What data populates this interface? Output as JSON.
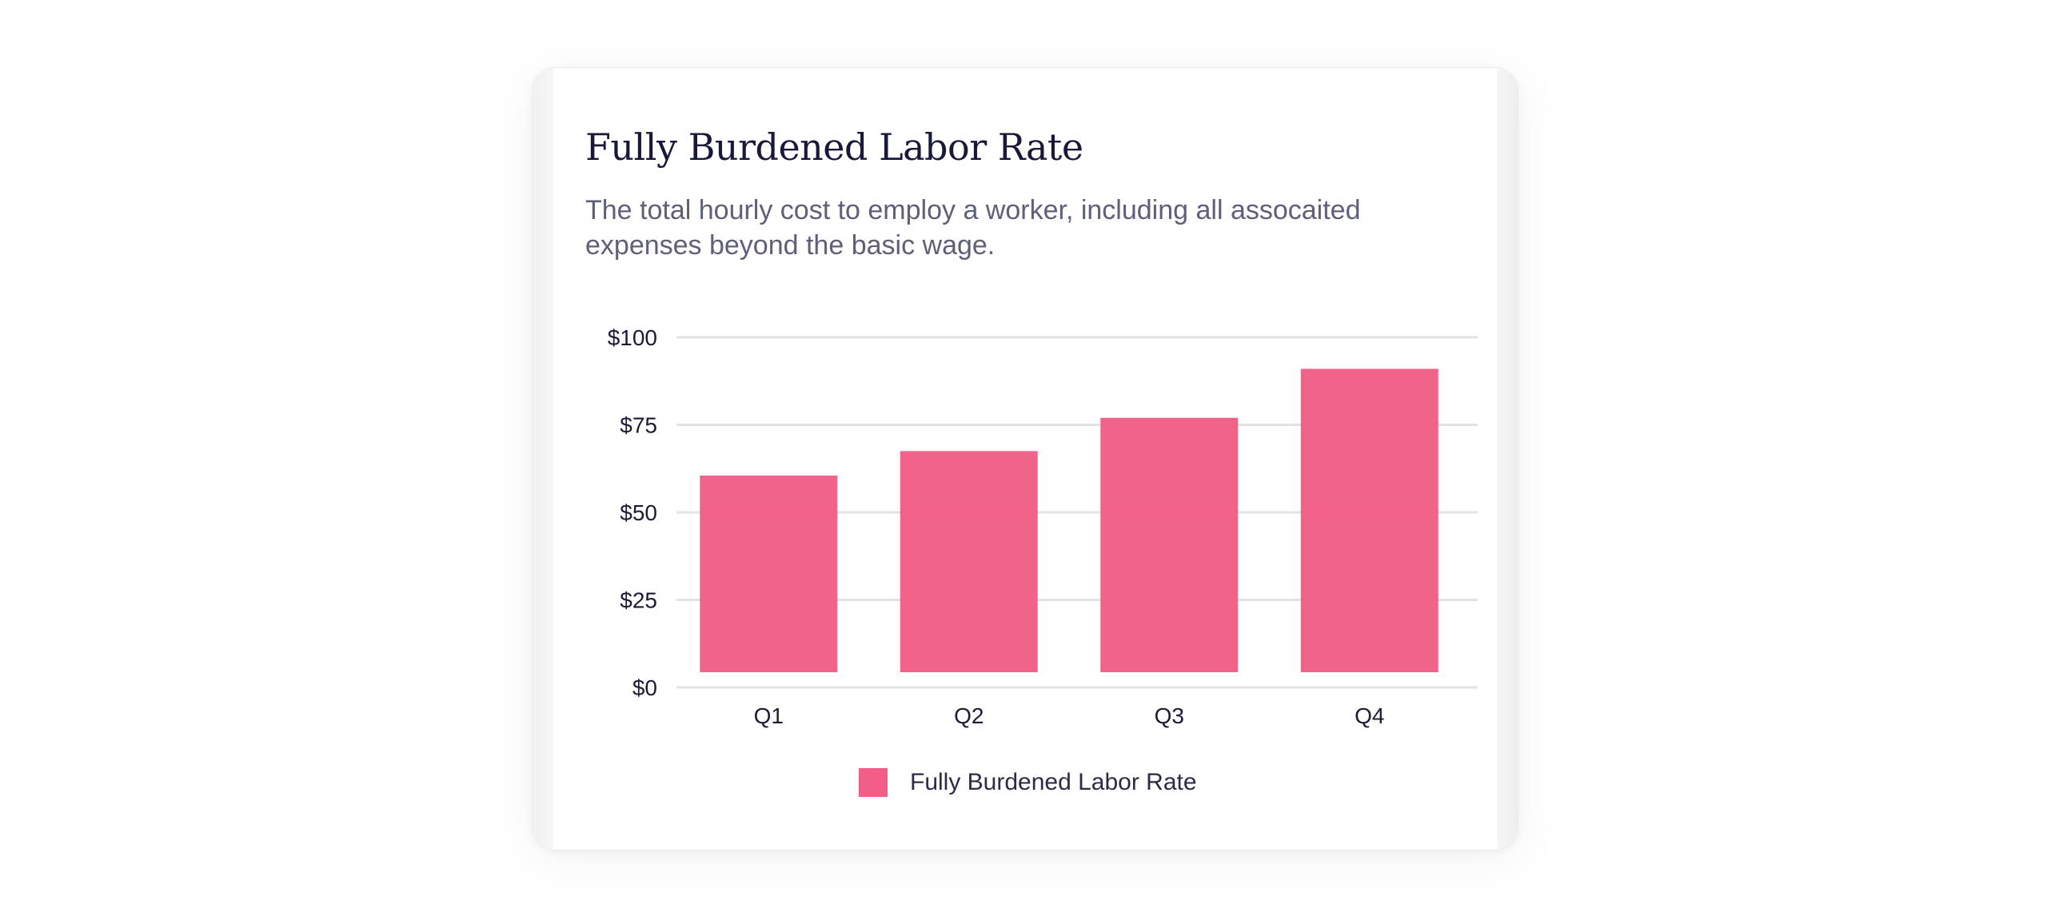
{
  "card": {
    "title": "Fully Burdened Labor Rate",
    "subtitle": "The total hourly cost to employ a worker, including all assocaited expenses beyond the basic wage."
  },
  "chart_data": {
    "type": "bar",
    "categories": [
      "Q1",
      "Q2",
      "Q3",
      "Q4"
    ],
    "series": [
      {
        "name": "Fully Burdened Labor Rate",
        "values": [
          60.5,
          67.5,
          77,
          91
        ],
        "color": "#f25e85"
      }
    ],
    "ylim": [
      0,
      100
    ],
    "yticks": [
      0,
      25,
      50,
      75,
      100
    ],
    "ytick_labels": [
      "$0",
      "$25",
      "$50",
      "$75",
      "$100"
    ],
    "grid": true,
    "legend": "bottom-center"
  },
  "legend": {
    "label": "Fully Burdened Labor Rate"
  }
}
